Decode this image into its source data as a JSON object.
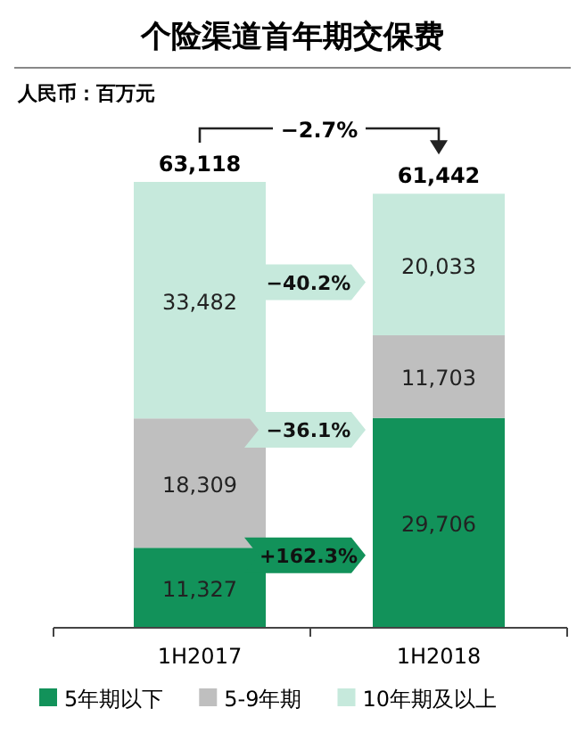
{
  "chart_data": {
    "type": "bar",
    "stacked": true,
    "title": "个险渠道首年期交保费",
    "categories": [
      "1H2017",
      "1H2018"
    ],
    "series": [
      {
        "name": "5年期以下",
        "color": "#12925a",
        "values": [
          11327,
          29706
        ],
        "value_labels": [
          "11,327",
          "29,706"
        ]
      },
      {
        "name": "5-9年期",
        "color": "#bfbfbf",
        "values": [
          18309,
          11703
        ],
        "value_labels": [
          "18,309",
          "11,703"
        ]
      },
      {
        "name": "10年期及以上",
        "color": "#c6e9dc",
        "values": [
          33482,
          20033
        ],
        "value_labels": [
          "33,482",
          "20,033"
        ]
      }
    ],
    "totals": [
      "63,118",
      "61,442"
    ],
    "annotations": [
      "人民币：百万元",
      "−2.7%",
      "+162.3%",
      "−36.1%",
      "−40.2%"
    ],
    "legend": "bottom"
  }
}
